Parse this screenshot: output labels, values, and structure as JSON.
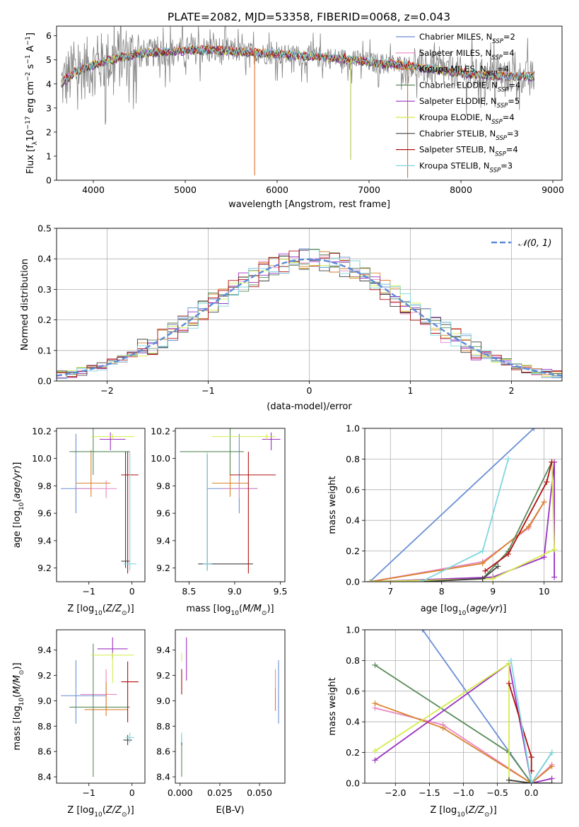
{
  "figure": {
    "title": "PLATE=2082, MJD=53358, FIBERID=0068, z=0.043"
  },
  "chart_data": [
    {
      "id": "spectrum",
      "type": "line",
      "xlabel": "wavelength [Angstrom, rest frame]",
      "ylabel": "Flux [f_λ 10^-17 erg cm^-2 s^-1 A^-1]",
      "xlim": [
        3600,
        9100
      ],
      "ylim": [
        0,
        6.4
      ],
      "xticks": [
        4000,
        5000,
        6000,
        7000,
        8000,
        9000
      ],
      "yticks": [
        0,
        1,
        2,
        3,
        4,
        5,
        6
      ],
      "grid": false,
      "legend_position": "top-right",
      "data_color": "#808080",
      "data_x_range": [
        3650,
        8800
      ],
      "continuum_x": [
        3650,
        3800,
        3950,
        4100,
        4300,
        4500,
        4700,
        4900,
        5100,
        5300,
        5500,
        5700,
        5900,
        6100,
        6300,
        6500,
        6700,
        6900,
        7100,
        7300,
        7500,
        7700,
        7900,
        8100,
        8300,
        8500,
        8800
      ],
      "continuum_y": [
        4.0,
        4.5,
        4.7,
        4.9,
        5.1,
        5.25,
        5.3,
        5.35,
        5.4,
        5.4,
        5.35,
        5.3,
        5.25,
        5.2,
        5.15,
        5.1,
        5.05,
        4.95,
        4.85,
        4.8,
        4.7,
        4.6,
        4.5,
        4.4,
        4.35,
        4.3,
        4.3
      ],
      "dips": [
        {
          "x": 5755,
          "y": 0.2,
          "color": "#e0702a"
        },
        {
          "x": 6800,
          "y": 0.85,
          "color": "#b6c24a"
        },
        {
          "x": 7420,
          "y": 0.1,
          "color": "#e0702a"
        }
      ],
      "series": [
        {
          "name": "Chabrier MILES, N_SSP=2",
          "label_main": "Chabrier MILES, N",
          "label_sub": "SSP",
          "label_end": "=2",
          "color": "#6a8fd6",
          "offset": 0.0
        },
        {
          "name": "Salpeter MILES, N_SSP=4",
          "label_main": "Salpeter MILES, N",
          "label_sub": "SSP",
          "label_end": "=4",
          "color": "#e887c3",
          "offset": 0.02
        },
        {
          "name": "Kroupa MILES, N_SSP=4",
          "label_main": "Kroupa MILES, N",
          "label_sub": "SSP",
          "label_end": "=4",
          "color": "#d9822b",
          "offset": 0.03
        },
        {
          "name": "Chabrier ELODIE, N_SSP=4",
          "label_main": "Chabrier ELODIE, N",
          "label_sub": "SSP",
          "label_end": "=4",
          "color": "#5a8a5a",
          "offset": -0.02
        },
        {
          "name": "Salpeter ELODIE, N_SSP=5",
          "label_main": "Salpeter ELODIE, N",
          "label_sub": "SSP",
          "label_end": "=5",
          "color": "#9b30c0",
          "offset": -0.03
        },
        {
          "name": "Kroupa ELODIE, N_SSP=4",
          "label_main": "Kroupa ELODIE, N",
          "label_sub": "SSP",
          "label_end": "=4",
          "color": "#d4ec4a",
          "offset": 0.01
        },
        {
          "name": "Chabrier STELIB, N_SSP=3",
          "label_main": "Chabrier STELIB, N",
          "label_sub": "SSP",
          "label_end": "=3",
          "color": "#404040",
          "offset": -0.01
        },
        {
          "name": "Salpeter STELIB, N_SSP=4",
          "label_main": "Salpeter STELIB, N",
          "label_sub": "SSP",
          "label_end": "=4",
          "color": "#b01010",
          "offset": 0.04
        },
        {
          "name": "Kroupa STELIB, N_SSP=3",
          "label_main": "Kroupa STELIB, N",
          "label_sub": "SSP",
          "label_end": "=3",
          "color": "#7fd6e0",
          "offset": 0.05
        }
      ]
    },
    {
      "id": "residuals",
      "type": "histogram",
      "xlabel": "(data-model)/error",
      "ylabel": "Normed distribution",
      "xlim": [
        -2.5,
        2.5
      ],
      "ylim": [
        0,
        0.5
      ],
      "xticks": [
        -2,
        -1,
        0,
        1,
        2
      ],
      "yticks": [
        0.0,
        0.1,
        0.2,
        0.3,
        0.4,
        0.5
      ],
      "grid": true,
      "legend_position": "top-right",
      "gaussian": {
        "name": "𝒩(0, 1)",
        "mean": 0,
        "sigma": 1,
        "color": "#5b8ad8"
      },
      "bin_width": 0.1,
      "bin_start": -2.5,
      "colors": [
        "#6a8fd6",
        "#e887c3",
        "#d9822b",
        "#5a8a5a",
        "#9b30c0",
        "#d4ec4a",
        "#404040",
        "#b01010",
        "#7fd6e0"
      ]
    },
    {
      "id": "age_vs_Z",
      "type": "scatter",
      "xlabel": "Z [log10(Z/Z⊙)]",
      "ylabel": "age [log10(age/yr)]",
      "xlim": [
        -1.75,
        0.3
      ],
      "ylim": [
        9.1,
        10.22
      ],
      "xticks": [
        -1,
        0
      ],
      "yticks": [
        9.2,
        9.4,
        9.6,
        9.8,
        10.0,
        10.2
      ],
      "points": [
        {
          "x": -1.3,
          "y": 9.78,
          "xerr": [
            0.35,
            0.35
          ],
          "yerr": [
            0.18,
            0.4
          ],
          "color": "#6a8fd6"
        },
        {
          "x": -0.6,
          "y": 9.78,
          "xerr": [
            0.7,
            0.25
          ],
          "yerr": [
            0.07,
            0.06
          ],
          "color": "#e887c3"
        },
        {
          "x": -0.95,
          "y": 9.82,
          "xerr": [
            0.35,
            0.45
          ],
          "yerr": [
            0.1,
            0.24
          ],
          "color": "#d9822b"
        },
        {
          "x": -0.9,
          "y": 10.05,
          "xerr": [
            0.55,
            0.85
          ],
          "yerr": [
            0.17,
            0.18
          ],
          "color": "#5a8a5a"
        },
        {
          "x": -0.5,
          "y": 10.14,
          "xerr": [
            0.25,
            0.35
          ],
          "yerr": [
            0.08,
            0.05
          ],
          "color": "#9b30c0"
        },
        {
          "x": -0.45,
          "y": 10.16,
          "xerr": [
            0.5,
            0.5
          ],
          "yerr": [
            0.02,
            0.02
          ],
          "color": "#d4ec4a"
        },
        {
          "x": -0.15,
          "y": 9.25,
          "xerr": [
            0.1,
            0.1
          ],
          "yerr": [
            0.05,
            0.8
          ],
          "color": "#404040"
        },
        {
          "x": -0.1,
          "y": 9.88,
          "xerr": [
            0.15,
            0.25
          ],
          "yerr": [
            0.72,
            0.17
          ],
          "color": "#b01010"
        },
        {
          "x": -0.05,
          "y": 9.23,
          "xerr": [
            0.15,
            0.15
          ],
          "yerr": [
            0.05,
            0.82
          ],
          "color": "#7fd6e0"
        }
      ]
    },
    {
      "id": "age_vs_mass",
      "type": "scatter",
      "xlabel": "mass [log10(M/M⊙)]",
      "ylabel": "",
      "xlim": [
        8.35,
        9.55
      ],
      "ylim": [
        9.1,
        10.22
      ],
      "xticks": [
        8.5,
        9.0,
        9.5
      ],
      "yticks": [
        9.2,
        9.4,
        9.6,
        9.8,
        10.0,
        10.2
      ],
      "points": [
        {
          "x": 9.05,
          "y": 9.78,
          "xerr": [
            0.35,
            0.2
          ],
          "yerr": [
            0.18,
            0.4
          ],
          "color": "#6a8fd6"
        },
        {
          "x": 9.05,
          "y": 9.78,
          "xerr": [
            0.2,
            0.2
          ],
          "yerr": [
            0.07,
            0.06
          ],
          "color": "#e887c3"
        },
        {
          "x": 8.95,
          "y": 9.82,
          "xerr": [
            0.2,
            0.2
          ],
          "yerr": [
            0.1,
            0.24
          ],
          "color": "#d9822b"
        },
        {
          "x": 8.95,
          "y": 10.05,
          "xerr": [
            0.55,
            0.15
          ],
          "yerr": [
            0.17,
            0.18
          ],
          "color": "#5a8a5a"
        },
        {
          "x": 9.4,
          "y": 10.14,
          "xerr": [
            0.1,
            0.1
          ],
          "yerr": [
            0.08,
            0.05
          ],
          "color": "#9b30c0"
        },
        {
          "x": 9.35,
          "y": 10.16,
          "xerr": [
            0.6,
            0.1
          ],
          "yerr": [
            0.02,
            0.02
          ],
          "color": "#d4ec4a"
        },
        {
          "x": 8.7,
          "y": 9.23,
          "xerr": [
            0.1,
            0.5
          ],
          "yerr": [
            0.05,
            0.8
          ],
          "color": "#404040"
        },
        {
          "x": 9.15,
          "y": 9.88,
          "xerr": [
            0.2,
            0.3
          ],
          "yerr": [
            0.72,
            0.17
          ],
          "color": "#b01010"
        },
        {
          "x": 8.7,
          "y": 9.23,
          "xerr": [
            0.05,
            0.05
          ],
          "yerr": [
            0.05,
            0.82
          ],
          "color": "#7fd6e0"
        }
      ]
    },
    {
      "id": "weight_vs_age",
      "type": "line",
      "xlabel": "age [log10(age/yr)]",
      "ylabel": "mass weight",
      "xlim": [
        6.5,
        10.35
      ],
      "ylim": [
        0,
        1.0
      ],
      "xticks": [
        7,
        8,
        9,
        10
      ],
      "yticks": [
        0.0,
        0.2,
        0.4,
        0.6,
        0.8,
        1.0
      ],
      "grid": true,
      "series": [
        {
          "color": "#6a8fd6",
          "x": [
            6.6,
            9.8
          ],
          "y": [
            0.0,
            1.0
          ]
        },
        {
          "color": "#e887c3",
          "x": [
            6.6,
            8.8,
            9.7,
            10.0
          ],
          "y": [
            0.0,
            0.13,
            0.35,
            0.52
          ]
        },
        {
          "color": "#d9822b",
          "x": [
            6.6,
            8.8,
            9.7,
            10.0
          ],
          "y": [
            0.0,
            0.12,
            0.36,
            0.52
          ]
        },
        {
          "color": "#5a8a5a",
          "x": [
            6.6,
            8.8,
            9.3,
            10.15
          ],
          "y": [
            0.0,
            0.02,
            0.2,
            0.78
          ]
        },
        {
          "color": "#9b30c0",
          "x": [
            6.6,
            9.0,
            10.0,
            10.2,
            10.2
          ],
          "y": [
            0.0,
            0.03,
            0.16,
            0.78,
            0.03
          ]
        },
        {
          "color": "#d4ec4a",
          "x": [
            6.6,
            9.0,
            10.2,
            10.15
          ],
          "y": [
            0.0,
            0.02,
            0.21,
            0.78
          ]
        },
        {
          "color": "#404040",
          "x": [
            7.6,
            8.8,
            9.1
          ],
          "y": [
            0.0,
            0.02,
            0.1
          ]
        },
        {
          "color": "#b01010",
          "x": [
            8.85,
            9.3,
            10.05,
            10.15
          ],
          "y": [
            0.07,
            0.18,
            0.65,
            0.78
          ]
        },
        {
          "color": "#7fd6e0",
          "x": [
            7.6,
            8.8,
            9.3
          ],
          "y": [
            0.0,
            0.2,
            0.8
          ]
        }
      ]
    },
    {
      "id": "mass_vs_Z",
      "type": "scatter",
      "xlabel": "Z [log10(Z/Z⊙)]",
      "ylabel": "mass [log10(M/M⊙)]",
      "xlim": [
        -1.75,
        0.3
      ],
      "ylim": [
        8.35,
        9.56
      ],
      "xticks": [
        -1,
        0
      ],
      "yticks": [
        8.4,
        8.6,
        8.8,
        9.0,
        9.2,
        9.4
      ],
      "points": [
        {
          "x": -1.3,
          "y": 9.04,
          "xerr": [
            0.35,
            0.7
          ],
          "yerr": [
            0.22,
            0.28
          ],
          "color": "#6a8fd6"
        },
        {
          "x": -0.6,
          "y": 9.05,
          "xerr": [
            0.6,
            0.25
          ],
          "yerr": [
            0.1,
            0.2
          ],
          "color": "#e887c3"
        },
        {
          "x": -0.6,
          "y": 8.93,
          "xerr": [
            0.5,
            0.5
          ],
          "yerr": [
            0.05,
            0.22
          ],
          "color": "#d9822b"
        },
        {
          "x": -0.9,
          "y": 8.95,
          "xerr": [
            0.55,
            0.85
          ],
          "yerr": [
            0.55,
            0.5
          ],
          "color": "#5a8a5a"
        },
        {
          "x": -0.45,
          "y": 9.41,
          "xerr": [
            0.35,
            0.35
          ],
          "yerr": [
            0.08,
            0.09
          ],
          "color": "#9b30c0"
        },
        {
          "x": -0.45,
          "y": 9.36,
          "xerr": [
            0.5,
            0.5
          ],
          "yerr": [
            0.22,
            0.02
          ],
          "color": "#d4ec4a"
        },
        {
          "x": -0.1,
          "y": 8.69,
          "xerr": [
            0.1,
            0.1
          ],
          "yerr": [
            0.04,
            0.04
          ],
          "color": "#404040"
        },
        {
          "x": -0.1,
          "y": 9.15,
          "xerr": [
            0.15,
            0.25
          ],
          "yerr": [
            0.32,
            0.16
          ],
          "color": "#b01010"
        },
        {
          "x": -0.05,
          "y": 8.71,
          "xerr": [
            0.1,
            0.1
          ],
          "yerr": [
            0.04,
            0.04
          ],
          "color": "#7fd6e0"
        }
      ]
    },
    {
      "id": "mass_vs_ebv",
      "type": "scatter",
      "xlabel": "E(B-V)",
      "ylabel": "",
      "xlim": [
        -0.003,
        0.066
      ],
      "ylim": [
        8.35,
        9.56
      ],
      "xticks": [
        0.0,
        0.025,
        0.05
      ],
      "yticks": [
        8.4,
        8.6,
        8.8,
        9.0,
        9.2,
        9.4
      ],
      "points": [
        {
          "x": 0.062,
          "y": 9.04,
          "xerr": [
            0,
            0
          ],
          "yerr": [
            0.22,
            0.28
          ],
          "color": "#6a8fd6"
        },
        {
          "x": 0.06,
          "y": 9.08,
          "xerr": [
            0,
            0
          ],
          "yerr": [
            0.15,
            0.17
          ],
          "color": "#e887c3"
        },
        {
          "x": 0.06,
          "y": 9.0,
          "xerr": [
            0,
            0
          ],
          "yerr": [
            0.08,
            0.1
          ],
          "color": "#d9822b"
        },
        {
          "x": 0.001,
          "y": 8.55,
          "xerr": [
            0,
            0
          ],
          "yerr": [
            0.15,
            0.15
          ],
          "color": "#5a8a5a"
        },
        {
          "x": 0.004,
          "y": 9.33,
          "xerr": [
            0,
            0
          ],
          "yerr": [
            0.17,
            0.17
          ],
          "color": "#9b30c0"
        },
        {
          "x": 0.001,
          "y": 9.36,
          "xerr": [
            0,
            0
          ],
          "yerr": [
            0.05,
            0.02
          ],
          "color": "#d4ec4a"
        },
        {
          "x": 0.001,
          "y": 8.69,
          "xerr": [
            0,
            0
          ],
          "yerr": [
            0.04,
            0.04
          ],
          "color": "#404040"
        },
        {
          "x": 0.001,
          "y": 9.15,
          "xerr": [
            0,
            0
          ],
          "yerr": [
            0.1,
            0.1
          ],
          "color": "#b01010"
        },
        {
          "x": 0.001,
          "y": 8.71,
          "xerr": [
            0,
            0
          ],
          "yerr": [
            0.04,
            0.04
          ],
          "color": "#7fd6e0"
        }
      ]
    },
    {
      "id": "weight_vs_Z",
      "type": "line",
      "xlabel": "Z [log10(Z/Z⊙)]",
      "ylabel": "mass weight",
      "xlim": [
        -2.45,
        0.45
      ],
      "ylim": [
        0,
        1.0
      ],
      "xticks": [
        -2.0,
        -1.5,
        -1.0,
        -0.5,
        0.0
      ],
      "yticks": [
        0.0,
        0.2,
        0.4,
        0.6,
        0.8,
        1.0
      ],
      "grid": true,
      "series": [
        {
          "color": "#6a8fd6",
          "x": [
            -1.6,
            0.0
          ],
          "y": [
            1.0,
            0.0
          ]
        },
        {
          "color": "#e887c3",
          "x": [
            -2.3,
            -1.3,
            0.0,
            0.3
          ],
          "y": [
            0.49,
            0.38,
            0.0,
            0.12
          ]
        },
        {
          "color": "#d9822b",
          "x": [
            -2.3,
            -1.3,
            0.0,
            0.3
          ],
          "y": [
            0.52,
            0.36,
            0.0,
            0.11
          ]
        },
        {
          "color": "#5a8a5a",
          "x": [
            -2.3,
            -0.33,
            0.0,
            0.3
          ],
          "y": [
            0.77,
            0.2,
            0.0,
            0.2
          ]
        },
        {
          "color": "#9b30c0",
          "x": [
            -2.3,
            -0.33,
            0.0,
            0.3
          ],
          "y": [
            0.15,
            0.78,
            0.0,
            0.03
          ]
        },
        {
          "color": "#d4ec4a",
          "x": [
            -2.3,
            -0.33,
            -0.33,
            0.0
          ],
          "y": [
            0.21,
            0.78,
            0.02,
            0.0
          ]
        },
        {
          "color": "#404040",
          "x": [
            -0.33,
            0.0,
            0.3
          ],
          "y": [
            0.02,
            0.0,
            0.0
          ]
        },
        {
          "color": "#b01010",
          "x": [
            -0.33,
            0.0,
            0.0
          ],
          "y": [
            0.65,
            0.17,
            0.08
          ]
        },
        {
          "color": "#7fd6e0",
          "x": [
            -0.3,
            0.0,
            0.3
          ],
          "y": [
            0.8,
            0.0,
            0.2
          ]
        }
      ]
    }
  ]
}
